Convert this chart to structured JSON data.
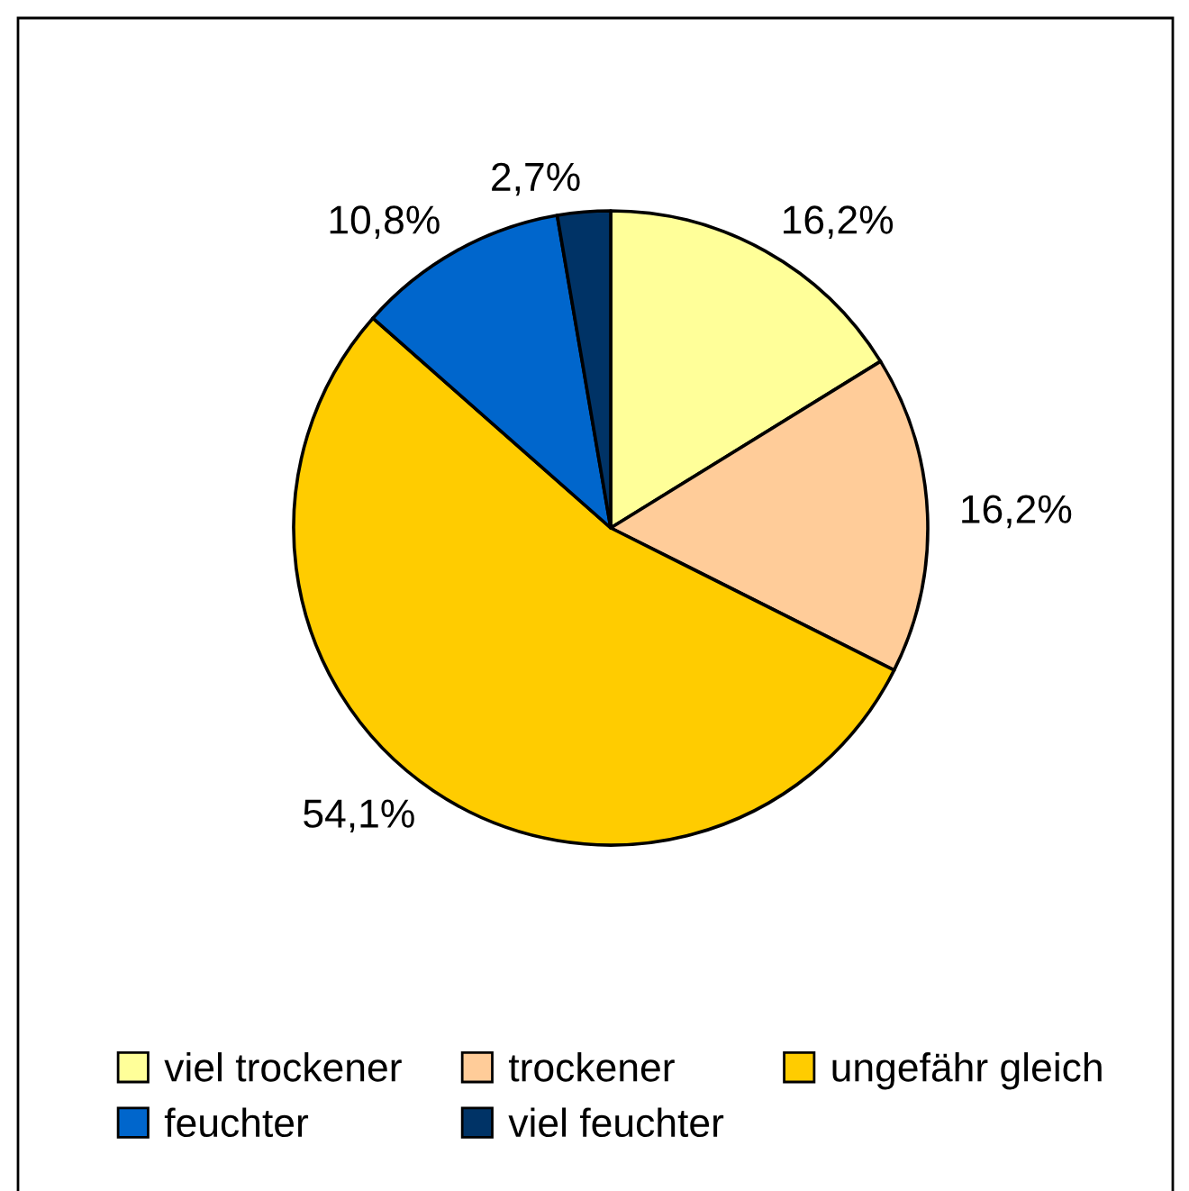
{
  "chart_data": {
    "type": "pie",
    "categories": [
      "viel trockener",
      "trockener",
      "ungefähr gleich",
      "feuchter",
      "viel feuchter"
    ],
    "values": [
      16.2,
      16.2,
      54.1,
      10.8,
      2.7
    ],
    "colors": [
      "#ffff99",
      "#ffcc99",
      "#ffcc00",
      "#0066cc",
      "#003366"
    ],
    "value_labels": [
      "16,2%",
      "16,2%",
      "54,1%",
      "10,8%",
      "2,7%"
    ],
    "legend": "bottom"
  }
}
